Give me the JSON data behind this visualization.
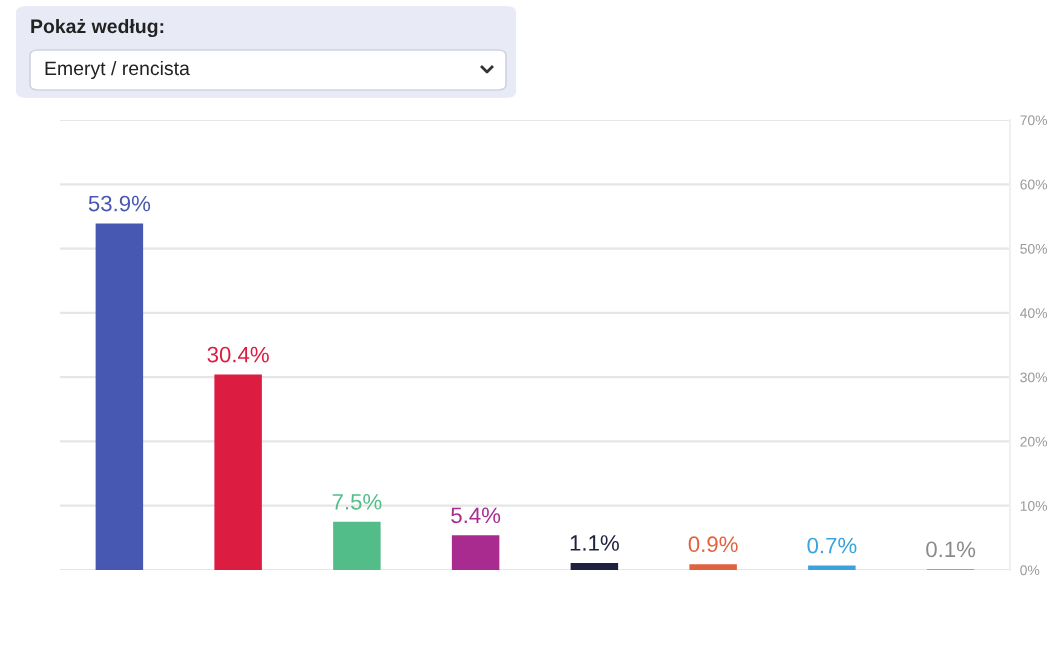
{
  "chart_data": {
    "type": "bar",
    "categories": [
      null,
      null,
      null,
      null,
      null,
      null,
      null,
      null
    ],
    "values": [
      53.9,
      30.4,
      7.5,
      5.4,
      1.1,
      0.9,
      0.7,
      0.1
    ],
    "colors": [
      "#4758b3",
      "#dc1c40",
      "#52bd88",
      "#a92b8f",
      "#1e2140",
      "#e0623e",
      "#3aa2dc",
      "#8a8a8a"
    ],
    "value_labels": [
      "53.9%",
      "30.4%",
      "7.5%",
      "5.4%",
      "1.1%",
      "0.9%",
      "0.7%",
      "0.1%"
    ],
    "ylim": [
      0,
      70
    ],
    "yticks": [
      {
        "value": 0,
        "label": "0%"
      },
      {
        "value": 10,
        "label": "10%"
      },
      {
        "value": 20,
        "label": "20%"
      },
      {
        "value": 30,
        "label": "30%"
      },
      {
        "value": 40,
        "label": "40%"
      },
      {
        "value": 50,
        "label": "50%"
      },
      {
        "value": 60,
        "label": "60%"
      },
      {
        "value": 70,
        "label": "70%"
      }
    ],
    "grid": "y",
    "legend": false,
    "tick_labels": "y",
    "annotations": [
      "Pokaż według:",
      "Emeryt / rencista"
    ]
  }
}
